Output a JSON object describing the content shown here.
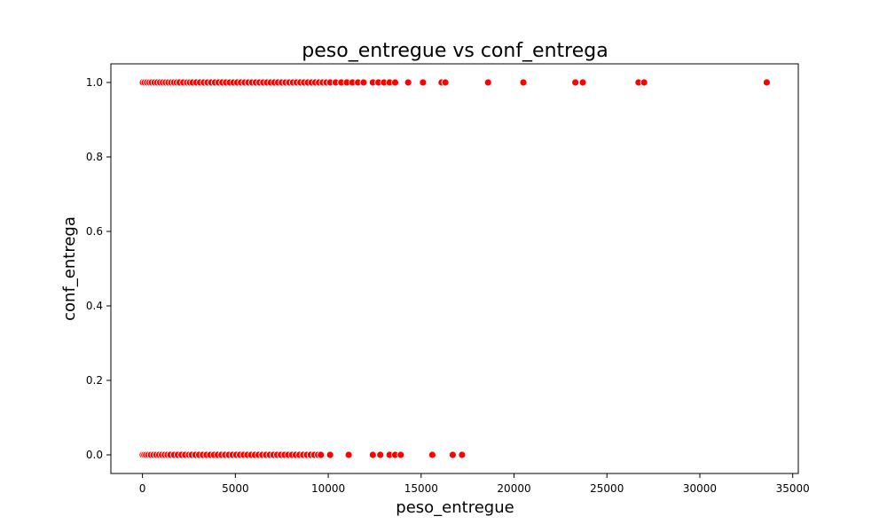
{
  "chart_data": {
    "type": "scatter",
    "title": "peso_entregue vs conf_entrega",
    "xlabel": "peso_entregue",
    "ylabel": "conf_entrega",
    "xlim": [
      -1700,
      35300
    ],
    "ylim": [
      -0.05,
      1.05
    ],
    "xticks": [
      0,
      5000,
      10000,
      15000,
      20000,
      25000,
      30000,
      35000
    ],
    "yticks": [
      0.0,
      0.2,
      0.4,
      0.6,
      0.8,
      1.0
    ],
    "xtick_labels": [
      "0",
      "5000",
      "10000",
      "15000",
      "20000",
      "25000",
      "30000",
      "35000"
    ],
    "ytick_labels": [
      "0.0",
      "0.2",
      "0.4",
      "0.6",
      "0.8",
      "1.0"
    ],
    "grid": false,
    "marker_color": "#ff0000",
    "marker_edge_color": "#ffffff",
    "series": [
      {
        "x": [
          20,
          120,
          250,
          380,
          500,
          650,
          800,
          950,
          1100,
          1250,
          1400,
          1550,
          1700,
          1850,
          2000,
          2200,
          2400,
          2550,
          2700,
          2900,
          3100,
          3300,
          3500,
          3700,
          3900,
          4100,
          4300,
          4500,
          4700,
          4900,
          5100,
          5300,
          5500,
          5700,
          5900,
          6100,
          6300,
          6500,
          6700,
          6900,
          7100,
          7300,
          7500,
          7700,
          7900,
          8100,
          8300,
          8500,
          8700,
          8900,
          9100,
          9300,
          9500,
          9700,
          9900,
          10100,
          10400,
          10700,
          11000,
          11300,
          11600,
          11900,
          12400,
          12700,
          13000,
          13300,
          13600,
          14300,
          15100,
          16100,
          16300,
          18600,
          20500,
          23300,
          23700,
          26700,
          27000,
          33600
        ],
        "y": [
          1,
          1,
          1,
          1,
          1,
          1,
          1,
          1,
          1,
          1,
          1,
          1,
          1,
          1,
          1,
          1,
          1,
          1,
          1,
          1,
          1,
          1,
          1,
          1,
          1,
          1,
          1,
          1,
          1,
          1,
          1,
          1,
          1,
          1,
          1,
          1,
          1,
          1,
          1,
          1,
          1,
          1,
          1,
          1,
          1,
          1,
          1,
          1,
          1,
          1,
          1,
          1,
          1,
          1,
          1,
          1,
          1,
          1,
          1,
          1,
          1,
          1,
          1,
          1,
          1,
          1,
          1,
          1,
          1,
          1,
          1,
          1,
          1,
          1,
          1,
          1,
          1,
          1
        ]
      },
      {
        "x": [
          10,
          100,
          200,
          320,
          450,
          600,
          750,
          900,
          1050,
          1200,
          1350,
          1500,
          1700,
          1900,
          2100,
          2300,
          2500,
          2650,
          2850,
          3050,
          3250,
          3450,
          3650,
          3850,
          4050,
          4250,
          4450,
          4650,
          4850,
          5050,
          5250,
          5450,
          5650,
          5850,
          6050,
          6250,
          6450,
          6650,
          6850,
          7050,
          7250,
          7450,
          7650,
          7850,
          8050,
          8250,
          8450,
          8650,
          8850,
          9050,
          9250,
          9450,
          9600,
          10100,
          11100,
          12400,
          12800,
          13300,
          13600,
          13900,
          15600,
          16700,
          17200
        ],
        "y": [
          0,
          0,
          0,
          0,
          0,
          0,
          0,
          0,
          0,
          0,
          0,
          0,
          0,
          0,
          0,
          0,
          0,
          0,
          0,
          0,
          0,
          0,
          0,
          0,
          0,
          0,
          0,
          0,
          0,
          0,
          0,
          0,
          0,
          0,
          0,
          0,
          0,
          0,
          0,
          0,
          0,
          0,
          0,
          0,
          0,
          0,
          0,
          0,
          0,
          0,
          0,
          0,
          0,
          0,
          0,
          0,
          0,
          0,
          0,
          0,
          0,
          0,
          0
        ]
      }
    ]
  }
}
